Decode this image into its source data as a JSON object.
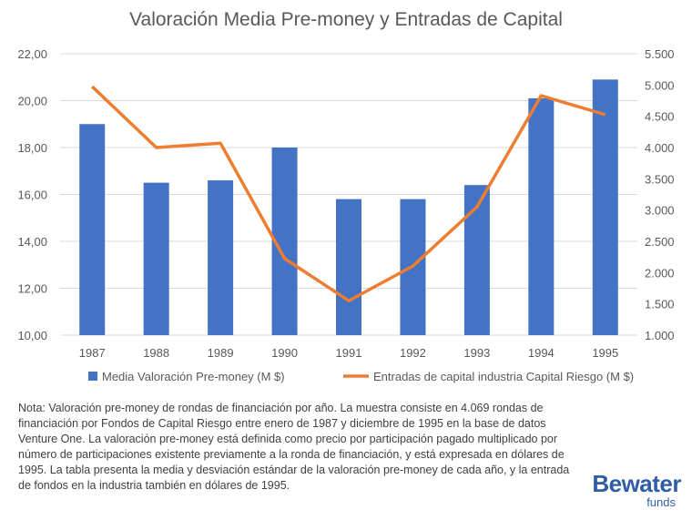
{
  "chart_data": {
    "type": "bar+line",
    "title": "Valoración Media Pre-money y Entradas de Capital",
    "categories": [
      "1987",
      "1988",
      "1989",
      "1990",
      "1991",
      "1992",
      "1993",
      "1994",
      "1995"
    ],
    "series": [
      {
        "name": "Media Valoración Pre-money (M $)",
        "type": "bar",
        "axis": "left",
        "color": "#4472c4",
        "values": [
          19.0,
          16.5,
          16.6,
          18.0,
          15.8,
          15.8,
          16.4,
          20.1,
          20.9
        ]
      },
      {
        "name": "Entradas de capital industria Capital Riesgo (M $)",
        "type": "line",
        "axis": "right",
        "color": "#ed7d31",
        "values": [
          4975,
          4000,
          4070,
          2225,
          1550,
          2105,
          3050,
          4830,
          4525
        ]
      }
    ],
    "left_axis": {
      "ylim": [
        10,
        22
      ],
      "ticks": [
        "10,00",
        "12,00",
        "14,00",
        "16,00",
        "18,00",
        "20,00",
        "22,00"
      ]
    },
    "right_axis": {
      "ylim": [
        1000,
        5500
      ],
      "ticks": [
        "1.000",
        "1.500",
        "2.000",
        "2.500",
        "3.000",
        "3.500",
        "4.000",
        "4.500",
        "5.000",
        "5.500"
      ]
    },
    "grid": true,
    "legend": "bottom"
  },
  "note": "Nota: Valoración pre-money de rondas de financiación por año. La muestra consiste en 4.069 rondas de financiación por Fondos de Capital Riesgo entre enero de 1987 y diciembre de 1995 en la base de datos Venture One. La valoración pre-money está definida como precio por participación pagado multiplicado por número de participaciones existente previamente a la ronda de financiación, y está expresada en dólares de 1995. La tabla presenta la media y desviación estándar de la valoración pre-money de cada año, y la entrada de fondos en la industria también en dólares de 1995.",
  "logo": {
    "name": "Bewater",
    "sub": "funds"
  }
}
